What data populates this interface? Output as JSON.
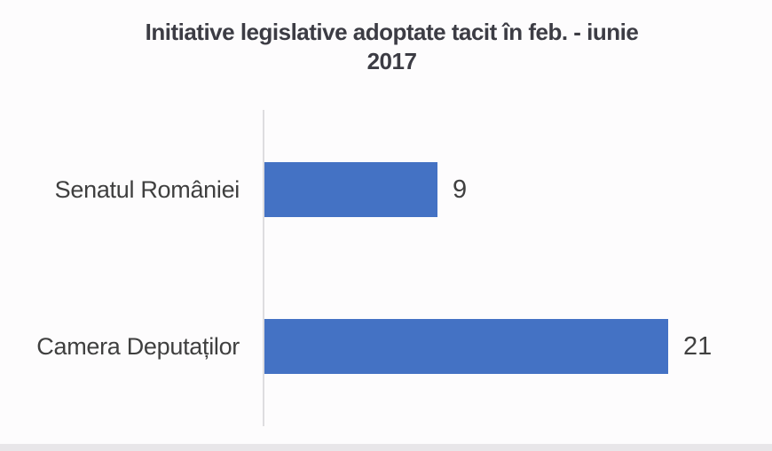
{
  "chart_data": {
    "type": "bar",
    "orientation": "horizontal",
    "title": "Initiative legislative adoptate tacit în feb. - iunie 2017",
    "title_lines": {
      "line1": "Initiative legislative adoptate tacit în feb. - iunie",
      "line2": "2017"
    },
    "categories": [
      "Senatul României",
      "Camera Deputaților"
    ],
    "values": [
      9,
      21
    ],
    "data_labels": [
      "9",
      "21"
    ],
    "series": [
      {
        "name": "Initiative legislative adoptate tacit",
        "values": [
          9,
          21
        ]
      }
    ],
    "xlim": [
      0,
      21
    ],
    "ylabel": "",
    "xlabel": "",
    "grid": false,
    "legend_position": "none",
    "bar_color": "#4472C4",
    "axis_line_color": "#DEDDE0",
    "text_color": "#404040",
    "title_color": "#3C3C44",
    "background_color": "#FDFCFD"
  }
}
